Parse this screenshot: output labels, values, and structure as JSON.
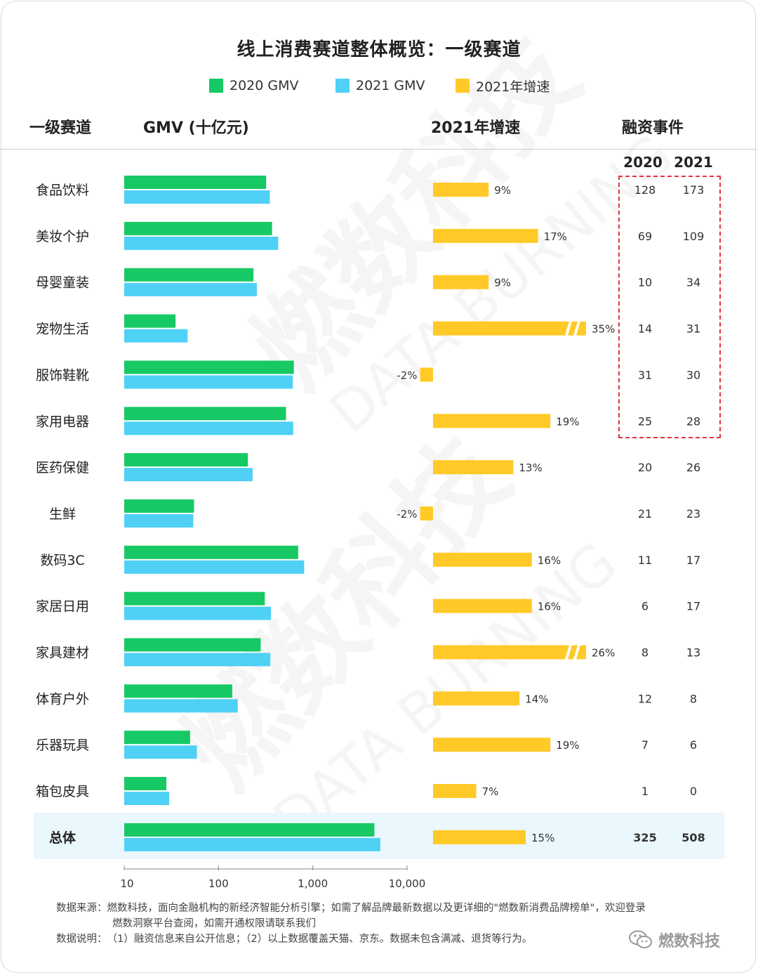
{
  "title": "线上消费赛道整体概览：一级赛道",
  "legend": {
    "gmv2020": "2020 GMV",
    "gmv2021": "2021 GMV",
    "growth": "2021年增速"
  },
  "headers": {
    "category": "一级赛道",
    "gmv": "GMV (十亿元)",
    "growth": "2021年增速",
    "funding": "融资事件",
    "year2020": "2020",
    "year2021": "2021"
  },
  "colors": {
    "gmv2020": "#17c964",
    "gmv2021": "#4fd0f5",
    "growth": "#ffca28",
    "highlight": "#eaf7fc",
    "dashbox": "#e8323c"
  },
  "chart_data": {
    "type": "bar",
    "xscale": "log",
    "xlim": [
      10,
      10000
    ],
    "xticks": [
      "10",
      "100",
      "1,000",
      "10,000"
    ],
    "xtick_values": [
      10,
      100,
      1000,
      10000
    ],
    "categories": [
      "食品饮料",
      "美妆个护",
      "母婴童装",
      "宠物生活",
      "服饰鞋靴",
      "家用电器",
      "医药保健",
      "生鲜",
      "数码3C",
      "家居日用",
      "家具建材",
      "体育户外",
      "乐器玩具",
      "箱包皮具",
      "总体"
    ],
    "series": [
      {
        "name": "2020 GMV",
        "values": [
          320,
          370,
          235,
          35,
          630,
          520,
          205,
          55,
          700,
          310,
          280,
          140,
          50,
          28,
          4500
        ]
      },
      {
        "name": "2021 GMV",
        "values": [
          350,
          430,
          255,
          47,
          615,
          620,
          230,
          54,
          810,
          360,
          355,
          160,
          59,
          30,
          5200
        ]
      }
    ],
    "growth": {
      "name": "2021年增速",
      "values": [
        9,
        17,
        9,
        35,
        -2,
        19,
        13,
        -2,
        16,
        16,
        26,
        14,
        19,
        7,
        15
      ],
      "labels": [
        "9%",
        "17%",
        "9%",
        "35%",
        "-2%",
        "19%",
        "13%",
        "-2%",
        "16%",
        "16%",
        "26%",
        "14%",
        "19%",
        "7%",
        "15%"
      ],
      "broken": [
        false,
        false,
        false,
        true,
        false,
        false,
        false,
        false,
        false,
        false,
        true,
        false,
        false,
        false,
        false
      ]
    },
    "funding": {
      "2020": [
        "128",
        "69",
        "10",
        "14",
        "31",
        "25",
        "20",
        "21",
        "11",
        "6",
        "8",
        "12",
        "7",
        "1",
        "325"
      ],
      "2021": [
        "173",
        "109",
        "34",
        "31",
        "30",
        "28",
        "26",
        "23",
        "17",
        "17",
        "13",
        "8",
        "6",
        "0",
        "508"
      ]
    },
    "legend_position": "top-center"
  },
  "footer": {
    "source_label": "数据来源：",
    "source_text": "燃数科技，面向金融机构的新经济智能分析引擎；如需了解品牌最新数据以及更详细的\"燃数新消费品牌榜单\"，欢迎登录",
    "source_text2": "燃数洞察平台查阅，如需开通权限请联系我们",
    "note_label": "数据说明：",
    "note_text": "（1）融资信息来自公开信息；（2）以上数据覆盖天猫、京东。数据未包含满减、退货等行为。"
  },
  "wechat": "燃数科技",
  "watermark": {
    "cn": "燃数科技",
    "en": "DATA BURNING"
  }
}
